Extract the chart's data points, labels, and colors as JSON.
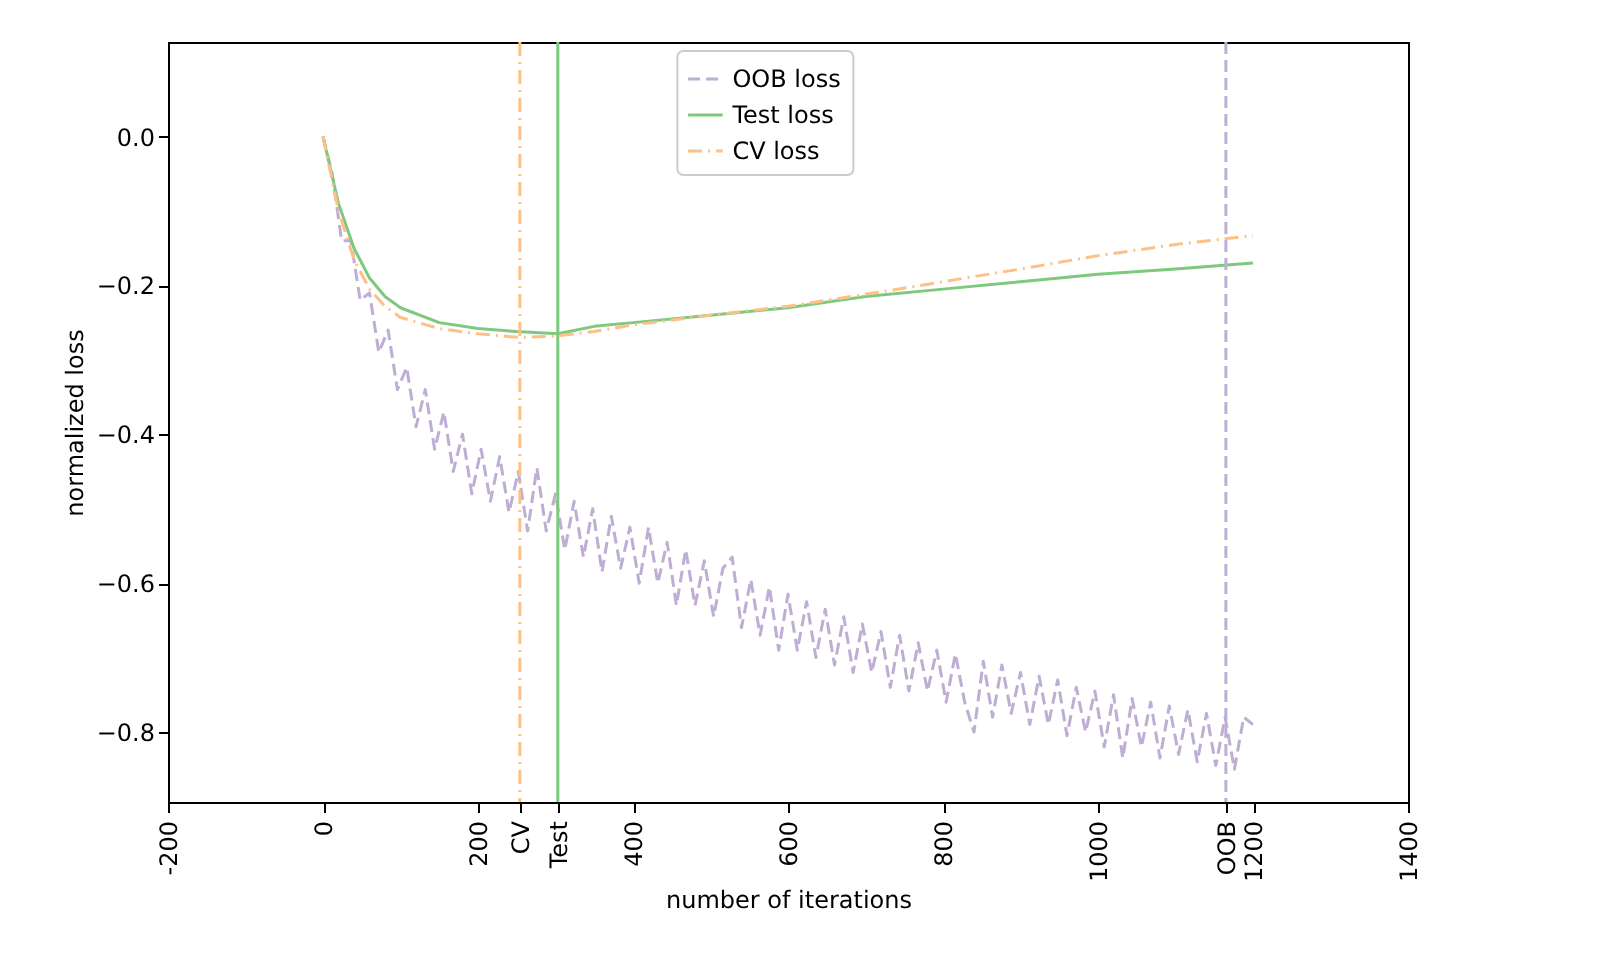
{
  "chart_data": {
    "type": "line",
    "xlabel": "number of iterations",
    "ylabel": "normalized loss",
    "xlim": [
      -200,
      1400
    ],
    "ylim": [
      -0.894,
      0.127
    ],
    "xticks": [
      -200,
      0,
      200,
      {
        "value": 254,
        "label": "CV"
      },
      {
        "value": 303,
        "label": "Test"
      },
      400,
      600,
      800,
      1000,
      {
        "value": 1165,
        "label": "OOB"
      },
      1200,
      1400
    ],
    "yticks": [
      {
        "value": 0,
        "label": "0.0"
      },
      {
        "value": -0.2,
        "label": "−0.2"
      },
      {
        "value": -0.4,
        "label": "−0.4"
      },
      {
        "value": -0.6,
        "label": "−0.6"
      },
      {
        "value": -0.8,
        "label": "−0.8"
      }
    ],
    "grid": false,
    "legend": "top",
    "marker": "none",
    "series": [
      {
        "name": "OOB loss",
        "color": "#beaed4",
        "line_style": "dashed",
        "x": [
          0,
          12,
          24,
          36,
          48,
          60,
          72,
          84,
          96,
          108,
          120,
          132,
          144,
          156,
          168,
          180,
          192,
          204,
          216,
          228,
          240,
          252,
          264,
          276,
          288,
          300,
          312,
          324,
          336,
          348,
          360,
          372,
          384,
          396,
          408,
          420,
          432,
          444,
          456,
          468,
          480,
          492,
          504,
          516,
          528,
          540,
          552,
          564,
          576,
          588,
          600,
          612,
          624,
          636,
          648,
          660,
          672,
          684,
          696,
          708,
          720,
          732,
          744,
          756,
          768,
          780,
          792,
          804,
          816,
          828,
          840,
          852,
          864,
          876,
          888,
          900,
          912,
          924,
          936,
          948,
          960,
          972,
          984,
          996,
          1008,
          1020,
          1032,
          1044,
          1056,
          1068,
          1080,
          1092,
          1104,
          1116,
          1128,
          1140,
          1152,
          1164,
          1176,
          1188,
          1200
        ],
        "values": [
          0,
          -0.05,
          -0.14,
          -0.14,
          -0.22,
          -0.21,
          -0.29,
          -0.26,
          -0.34,
          -0.31,
          -0.39,
          -0.34,
          -0.42,
          -0.37,
          -0.45,
          -0.4,
          -0.48,
          -0.42,
          -0.49,
          -0.43,
          -0.505,
          -0.45,
          -0.53,
          -0.445,
          -0.53,
          -0.48,
          -0.555,
          -0.49,
          -0.565,
          -0.5,
          -0.585,
          -0.51,
          -0.58,
          -0.525,
          -0.6,
          -0.525,
          -0.6,
          -0.545,
          -0.63,
          -0.555,
          -0.63,
          -0.57,
          -0.645,
          -0.58,
          -0.565,
          -0.66,
          -0.595,
          -0.67,
          -0.605,
          -0.69,
          -0.615,
          -0.69,
          -0.625,
          -0.7,
          -0.635,
          -0.71,
          -0.645,
          -0.72,
          -0.655,
          -0.72,
          -0.665,
          -0.74,
          -0.67,
          -0.745,
          -0.68,
          -0.745,
          -0.69,
          -0.76,
          -0.695,
          -0.76,
          -0.8,
          -0.705,
          -0.78,
          -0.71,
          -0.775,
          -0.72,
          -0.79,
          -0.725,
          -0.79,
          -0.73,
          -0.805,
          -0.74,
          -0.8,
          -0.745,
          -0.82,
          -0.75,
          -0.835,
          -0.755,
          -0.82,
          -0.76,
          -0.835,
          -0.765,
          -0.83,
          -0.77,
          -0.84,
          -0.775,
          -0.845,
          -0.78,
          -0.85,
          -0.78,
          -0.79
        ]
      },
      {
        "name": "Test loss",
        "color": "#7fc97f",
        "line_style": "solid",
        "x": [
          0,
          20,
          40,
          60,
          80,
          100,
          150,
          200,
          250,
          303,
          350,
          400,
          500,
          600,
          700,
          800,
          900,
          1000,
          1100,
          1200
        ],
        "values": [
          0,
          -0.09,
          -0.15,
          -0.19,
          -0.215,
          -0.23,
          -0.25,
          -0.258,
          -0.262,
          -0.265,
          -0.255,
          -0.25,
          -0.24,
          -0.23,
          -0.215,
          -0.205,
          -0.195,
          -0.185,
          -0.178,
          -0.17
        ]
      },
      {
        "name": "CV loss",
        "color": "#fdc086",
        "line_style": "dashdot",
        "x": [
          0,
          20,
          40,
          60,
          80,
          100,
          150,
          200,
          254,
          300,
          350,
          400,
          500,
          600,
          700,
          800,
          900,
          1000,
          1100,
          1200
        ],
        "values": [
          0,
          -0.1,
          -0.165,
          -0.205,
          -0.228,
          -0.243,
          -0.258,
          -0.265,
          -0.27,
          -0.268,
          -0.262,
          -0.253,
          -0.24,
          -0.228,
          -0.212,
          -0.195,
          -0.178,
          -0.16,
          -0.145,
          -0.133
        ]
      }
    ],
    "ref_lines": [
      {
        "axis": "x",
        "value": 254,
        "color": "#fdc086",
        "line_style": "dashdot"
      },
      {
        "axis": "x",
        "value": 303,
        "color": "#7fc97f",
        "line_style": "solid"
      },
      {
        "axis": "x",
        "value": 1165,
        "color": "#beaed4",
        "line_style": "dashed"
      }
    ]
  }
}
